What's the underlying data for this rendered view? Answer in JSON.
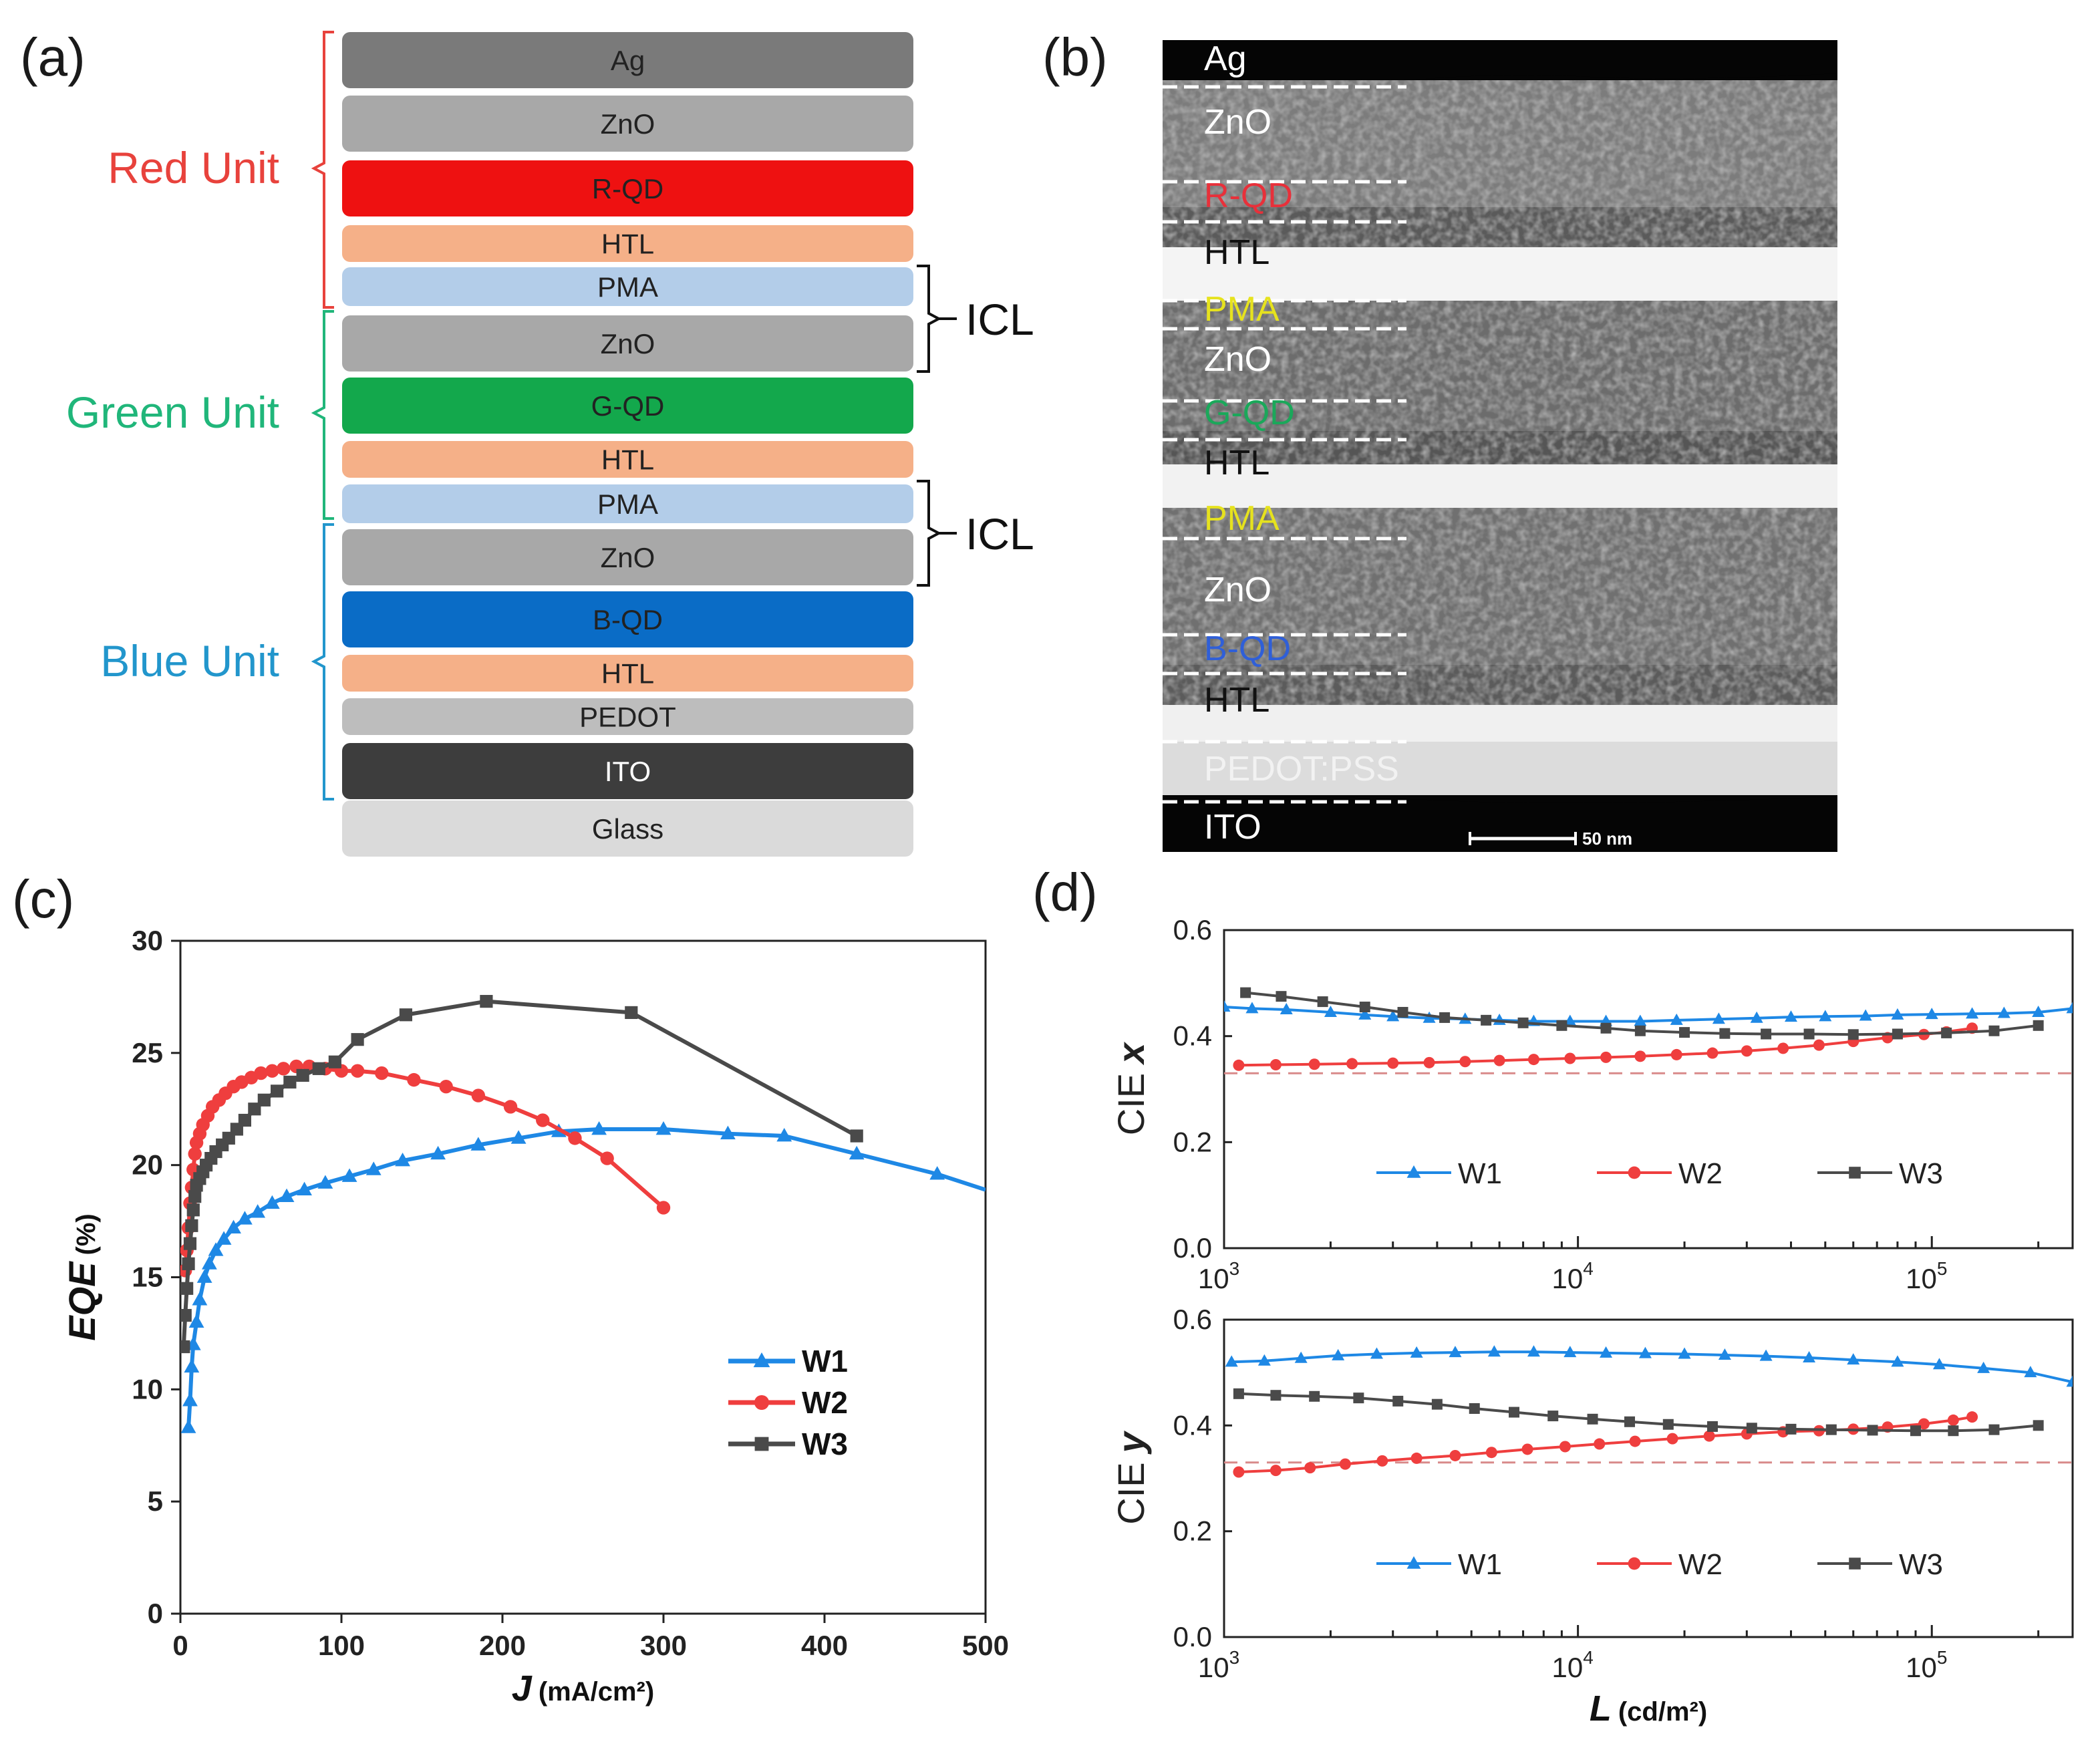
{
  "panels": {
    "a": {
      "label": "(a)",
      "layers": [
        {
          "name": "Ag",
          "color": "#7a7a7a"
        },
        {
          "name": "ZnO",
          "color": "#a8a8a8"
        },
        {
          "name": "R-QD",
          "color": "#ee1111"
        },
        {
          "name": "HTL",
          "color": "#f5b088"
        },
        {
          "name": "PMA",
          "color": "#b3cde9"
        },
        {
          "name": "ZnO",
          "color": "#a8a8a8"
        },
        {
          "name": "G-QD",
          "color": "#13a84c"
        },
        {
          "name": "HTL",
          "color": "#f5b088"
        },
        {
          "name": "PMA",
          "color": "#b3cde9"
        },
        {
          "name": "ZnO",
          "color": "#a8a8a8"
        },
        {
          "name": "B-QD",
          "color": "#0a6cc6"
        },
        {
          "name": "HTL",
          "color": "#f5b088"
        },
        {
          "name": "PEDOT",
          "color": "#bdbdbd"
        },
        {
          "name": "ITO",
          "color": "#3d3d3d"
        },
        {
          "name": "Glass",
          "color": "#dadada"
        }
      ],
      "units": [
        {
          "name": "Red Unit",
          "color": "#e8423c"
        },
        {
          "name": "Green Unit",
          "color": "#20b67a"
        },
        {
          "name": "Blue Unit",
          "color": "#2296cc"
        }
      ],
      "icl_label": "ICL"
    },
    "b": {
      "label": "(b)",
      "layers": [
        {
          "name": "Ag",
          "color": "#ffffff"
        },
        {
          "name": "ZnO",
          "color": "#ffffff"
        },
        {
          "name": "R-QD",
          "color": "#e8303a"
        },
        {
          "name": "HTL",
          "color": "#111111"
        },
        {
          "name": "PMA",
          "color": "#e6e21e"
        },
        {
          "name": "ZnO",
          "color": "#ffffff"
        },
        {
          "name": "G-QD",
          "color": "#1aa85a"
        },
        {
          "name": "HTL",
          "color": "#111111"
        },
        {
          "name": "PMA",
          "color": "#e6e21e"
        },
        {
          "name": "ZnO",
          "color": "#ffffff"
        },
        {
          "name": "B-QD",
          "color": "#2f5fd8"
        },
        {
          "name": "HTL",
          "color": "#111111"
        },
        {
          "name": "PEDOT:PSS",
          "color": "#f2f2f2"
        },
        {
          "name": "ITO",
          "color": "#ffffff"
        }
      ],
      "scalebar": "50 nm"
    },
    "c": {
      "label": "(c)",
      "ylabel": "EQE",
      "ylabel_unit": "(%)",
      "xlabel": "J",
      "xlabel_unit": "(mA/cm²)",
      "xticks": [
        "0",
        "100",
        "200",
        "300",
        "400",
        "500"
      ],
      "yticks": [
        "0",
        "5",
        "10",
        "15",
        "20",
        "25",
        "30"
      ],
      "legend": [
        "W1",
        "W2",
        "W3"
      ]
    },
    "d": {
      "label": "(d)",
      "top_ylabel": "CIE",
      "top_ylabel_var": "x",
      "bottom_ylabel": "CIE",
      "bottom_ylabel_var": "y",
      "xlabel": "L",
      "xlabel_unit": "(cd/m²)",
      "yticks": [
        "0.0",
        "0.2",
        "0.4",
        "0.6"
      ],
      "xtick_base": "10",
      "xtick_exps": [
        "3",
        "4",
        "5"
      ],
      "legend": [
        "W1",
        "W2",
        "W3"
      ]
    }
  },
  "colors": {
    "W1": "#1e88e5",
    "W2": "#ef3e3e",
    "W3": "#4a4a4a"
  },
  "chart_data": [
    {
      "type": "line",
      "panel": "c",
      "xlabel": "J (mA/cm²)",
      "ylabel": "EQE (%)",
      "xlim": [
        0,
        500
      ],
      "ylim": [
        0,
        30
      ],
      "legend_position": "bottom-right",
      "series": [
        {
          "name": "W1",
          "marker": "triangle",
          "x": [
            5,
            6,
            7,
            8,
            10,
            12,
            15,
            18,
            22,
            27,
            33,
            40,
            48,
            57,
            66,
            77,
            90,
            105,
            120,
            138,
            160,
            185,
            210,
            235,
            260,
            300,
            340,
            375,
            420,
            470,
            500
          ],
          "y": [
            8.3,
            9.5,
            11,
            12,
            13,
            14,
            15,
            15.6,
            16.2,
            16.7,
            17.2,
            17.6,
            17.9,
            18.3,
            18.6,
            18.9,
            19.2,
            19.5,
            19.8,
            20.2,
            20.5,
            20.9,
            21.2,
            21.5,
            21.6,
            21.6,
            21.4,
            21.3,
            20.5,
            19.6,
            18.9
          ]
        },
        {
          "name": "W2",
          "marker": "circle",
          "x": [
            3,
            4,
            5,
            6,
            7,
            8,
            9,
            10,
            12,
            14,
            17,
            20,
            24,
            28,
            33,
            38,
            44,
            50,
            57,
            64,
            72,
            80,
            90,
            100,
            110,
            125,
            145,
            165,
            185,
            205,
            225,
            245,
            265,
            300
          ],
          "y": [
            15.3,
            16.2,
            17.2,
            18.3,
            19,
            19.8,
            20.5,
            21,
            21.4,
            21.8,
            22.2,
            22.6,
            22.9,
            23.2,
            23.5,
            23.7,
            23.9,
            24.1,
            24.2,
            24.3,
            24.4,
            24.4,
            24.3,
            24.2,
            24.2,
            24.1,
            23.8,
            23.5,
            23.1,
            22.6,
            22,
            21.2,
            20.3,
            18.1
          ]
        },
        {
          "name": "W3",
          "marker": "square",
          "x": [
            2,
            3,
            4,
            5,
            6,
            7,
            8,
            9,
            10,
            12,
            14,
            16,
            19,
            22,
            26,
            30,
            35,
            40,
            46,
            52,
            60,
            68,
            76,
            86,
            96,
            110,
            140,
            190,
            280,
            420
          ],
          "y": [
            11.9,
            13.3,
            14.5,
            15.6,
            16.5,
            17.3,
            18,
            18.6,
            19.1,
            19.4,
            19.7,
            20,
            20.3,
            20.6,
            20.9,
            21.2,
            21.6,
            22,
            22.5,
            22.9,
            23.3,
            23.7,
            24,
            24.3,
            24.6,
            25.6,
            26.7,
            27.3,
            26.8,
            21.3
          ]
        }
      ]
    },
    {
      "type": "line",
      "panel": "d-top",
      "ylabel": "CIE x",
      "xlabel": "L (cd/m²)",
      "xscale": "log",
      "xlim": [
        1000,
        250000
      ],
      "ylim": [
        0,
        0.6
      ],
      "legend_position": "bottom-center",
      "reference_line": 0.33,
      "series": [
        {
          "name": "W1",
          "marker": "triangle",
          "x": [
            1000,
            1200,
            1500,
            2000,
            2500,
            3000,
            3800,
            4800,
            6000,
            7500,
            9500,
            12000,
            15000,
            19000,
            25000,
            32000,
            40000,
            50000,
            65000,
            80000,
            100000,
            130000,
            160000,
            200000,
            250000
          ],
          "y": [
            0.455,
            0.452,
            0.45,
            0.445,
            0.44,
            0.437,
            0.434,
            0.432,
            0.43,
            0.428,
            0.428,
            0.428,
            0.428,
            0.43,
            0.432,
            0.434,
            0.436,
            0.437,
            0.438,
            0.44,
            0.441,
            0.442,
            0.443,
            0.445,
            0.452
          ]
        },
        {
          "name": "W2",
          "marker": "circle",
          "x": [
            1100,
            1400,
            1800,
            2300,
            3000,
            3800,
            4800,
            6000,
            7500,
            9500,
            12000,
            15000,
            19000,
            24000,
            30000,
            38000,
            48000,
            60000,
            75000,
            95000,
            110000,
            130000
          ],
          "y": [
            0.345,
            0.346,
            0.347,
            0.348,
            0.349,
            0.35,
            0.352,
            0.354,
            0.356,
            0.358,
            0.36,
            0.362,
            0.365,
            0.368,
            0.372,
            0.377,
            0.383,
            0.39,
            0.397,
            0.403,
            0.408,
            0.415
          ]
        },
        {
          "name": "W3",
          "marker": "square",
          "x": [
            1150,
            1450,
            1900,
            2500,
            3200,
            4200,
            5500,
            7000,
            9000,
            12000,
            15000,
            20000,
            26000,
            34000,
            45000,
            60000,
            80000,
            110000,
            150000,
            200000
          ],
          "y": [
            0.482,
            0.475,
            0.465,
            0.455,
            0.445,
            0.435,
            0.43,
            0.425,
            0.42,
            0.415,
            0.41,
            0.407,
            0.405,
            0.404,
            0.404,
            0.403,
            0.404,
            0.406,
            0.41,
            0.42
          ]
        }
      ]
    },
    {
      "type": "line",
      "panel": "d-bottom",
      "ylabel": "CIE y",
      "xlabel": "L (cd/m²)",
      "xscale": "log",
      "xlim": [
        1000,
        250000
      ],
      "ylim": [
        0,
        0.6
      ],
      "legend_position": "bottom-center",
      "reference_line": 0.33,
      "series": [
        {
          "name": "W1",
          "marker": "triangle",
          "x": [
            1050,
            1300,
            1650,
            2100,
            2700,
            3500,
            4500,
            5800,
            7500,
            9500,
            12000,
            15500,
            20000,
            26000,
            34000,
            45000,
            60000,
            80000,
            105000,
            140000,
            190000,
            250000
          ],
          "y": [
            0.52,
            0.522,
            0.527,
            0.532,
            0.535,
            0.537,
            0.538,
            0.539,
            0.539,
            0.538,
            0.537,
            0.536,
            0.535,
            0.533,
            0.531,
            0.528,
            0.524,
            0.52,
            0.515,
            0.508,
            0.5,
            0.482
          ]
        },
        {
          "name": "W2",
          "marker": "circle",
          "x": [
            1100,
            1400,
            1750,
            2200,
            2800,
            3500,
            4500,
            5700,
            7200,
            9200,
            11500,
            14500,
            18500,
            23500,
            30000,
            38000,
            48000,
            60000,
            75000,
            95000,
            115000,
            130000
          ],
          "y": [
            0.312,
            0.315,
            0.32,
            0.327,
            0.333,
            0.338,
            0.343,
            0.349,
            0.355,
            0.36,
            0.365,
            0.37,
            0.375,
            0.38,
            0.384,
            0.388,
            0.39,
            0.393,
            0.397,
            0.403,
            0.41,
            0.416
          ]
        },
        {
          "name": "W3",
          "marker": "square",
          "x": [
            1100,
            1400,
            1800,
            2400,
            3100,
            4000,
            5100,
            6600,
            8500,
            11000,
            14000,
            18000,
            24000,
            31000,
            40000,
            52000,
            68000,
            90000,
            115000,
            150000,
            200000
          ],
          "y": [
            0.46,
            0.457,
            0.455,
            0.452,
            0.446,
            0.44,
            0.432,
            0.425,
            0.418,
            0.412,
            0.407,
            0.402,
            0.398,
            0.395,
            0.393,
            0.392,
            0.391,
            0.39,
            0.39,
            0.392,
            0.4
          ]
        }
      ]
    }
  ]
}
